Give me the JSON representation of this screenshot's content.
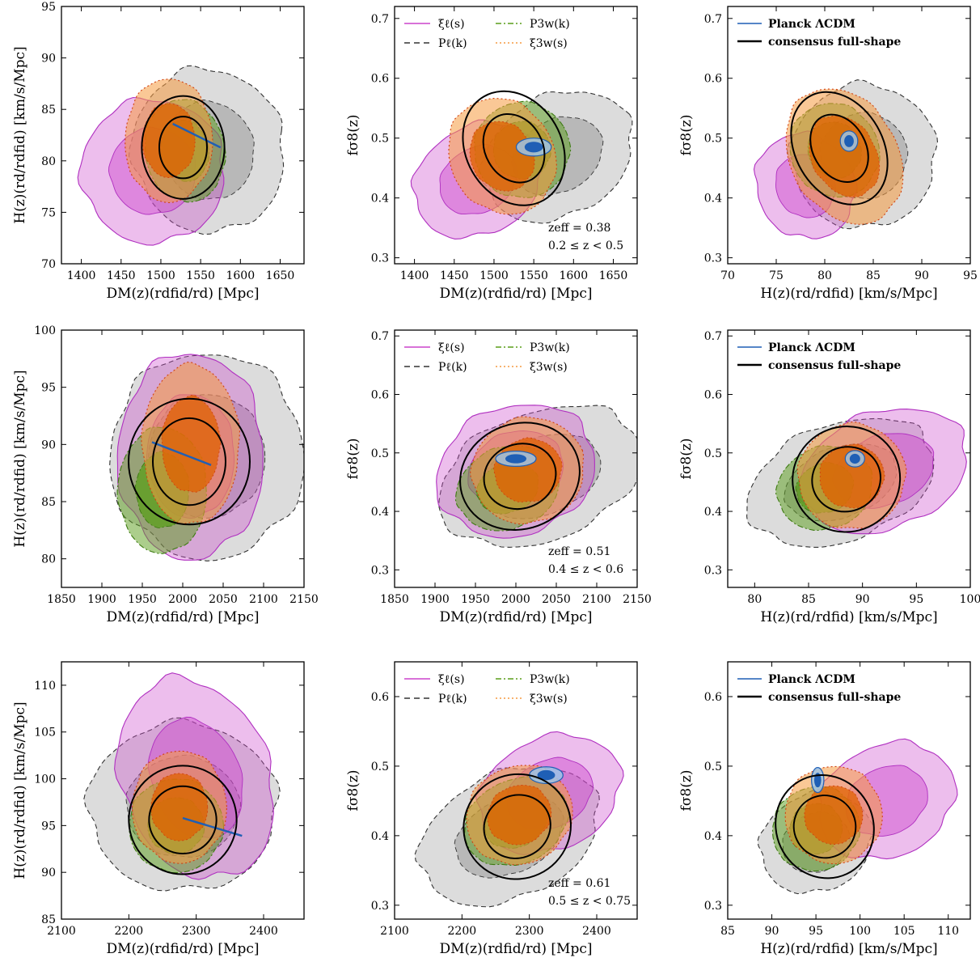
{
  "colors": {
    "xi_ell": "#cc44cc",
    "P_ell": "#808080",
    "P_3w": "#5a9e1a",
    "xi_3w": "#f59a40",
    "planck": "#1f5fb5",
    "consensus": "#000000"
  },
  "legends": {
    "methods": [
      {
        "name": "ξℓ(s)",
        "style": "solid",
        "color": "xi_ell"
      },
      {
        "name": "Pℓ(k)",
        "style": "dashed",
        "color": "P_ell"
      },
      {
        "name": "P3w(k)",
        "style": "dashdot",
        "color": "P_3w"
      },
      {
        "name": "ξ3w(s)",
        "style": "dotted",
        "color": "xi_3w"
      }
    ],
    "reference": [
      {
        "name": "Planck ΛCDM",
        "style": "solid",
        "color": "planck"
      },
      {
        "name": "consensus full-shape",
        "style": "solid-thick",
        "color": "consensus"
      }
    ]
  },
  "axis_titles": {
    "DM": "DM(z)(rdfid/rd) [Mpc]",
    "H_left": "H(z)(rd/rdfid) [km/s/Mpc]",
    "H_bottom": "H(z)(rd/rdfid) [km/s/Mpc]",
    "fs8": "fσ8(z)"
  },
  "chart_data": [
    {
      "type": "contour",
      "panel": "row1-col1",
      "xlim": [
        1375,
        1680
      ],
      "ylim": [
        70,
        95
      ],
      "xticks": [
        1400,
        1450,
        1500,
        1550,
        1600,
        1650
      ],
      "yticks": [
        70,
        75,
        80,
        85,
        90,
        95
      ],
      "xlabel": "DM",
      "ylabel": "H_left",
      "contours": [
        {
          "method": "P_ell",
          "cx": 1560,
          "cy": 81,
          "rx": 95,
          "ry": 8,
          "angle": 15
        },
        {
          "method": "xi_ell",
          "cx": 1490,
          "cy": 79,
          "rx": 90,
          "ry": 7,
          "angle": 30
        },
        {
          "method": "P_3w",
          "cx": 1530,
          "cy": 81,
          "rx": 50,
          "ry": 5,
          "angle": 10
        },
        {
          "method": "xi_3w",
          "cx": 1510,
          "cy": 82,
          "rx": 55,
          "ry": 6,
          "angle": 0
        }
      ],
      "consensus": {
        "cx": 1528,
        "cy": 81.3,
        "rx_inner": 30,
        "ry_inner": 3.0,
        "rx_outer": 52,
        "ry_outer": 5.0
      },
      "planck_line": {
        "x": [
          1515,
          1575
        ],
        "y": [
          83.6,
          81.3
        ]
      }
    },
    {
      "type": "contour",
      "panel": "row1-col2",
      "xlim": [
        1375,
        1680
      ],
      "ylim": [
        0.29,
        0.72
      ],
      "xticks": [
        1400,
        1450,
        1500,
        1550,
        1600,
        1650
      ],
      "yticks": [
        0.3,
        0.4,
        0.5,
        0.6,
        0.7
      ],
      "xlabel": "DM",
      "ylabel": "fs8",
      "contours": [
        {
          "method": "P_ell",
          "cx": 1580,
          "cy": 0.47,
          "rx": 100,
          "ry": 0.1,
          "angle": 30
        },
        {
          "method": "xi_ell",
          "cx": 1480,
          "cy": 0.43,
          "rx": 85,
          "ry": 0.09,
          "angle": 30
        },
        {
          "method": "P_3w",
          "cx": 1535,
          "cy": 0.48,
          "rx": 60,
          "ry": 0.08,
          "angle": 30
        },
        {
          "method": "xi_3w",
          "cx": 1510,
          "cy": 0.47,
          "rx": 65,
          "ry": 0.1,
          "angle": 30
        }
      ],
      "consensus": {
        "cx": 1525,
        "cy": 0.483,
        "rx_inner": 36,
        "ry_inner": 0.06,
        "rx_outer": 60,
        "ry_outer": 0.1
      },
      "planck_blob": {
        "cx": 1550,
        "cy": 0.485,
        "rx": 22,
        "ry": 0.015
      },
      "annotation": [
        "zeff = 0.38",
        "0.2 ≤ z < 0.5"
      ],
      "legend": "methods"
    },
    {
      "type": "contour",
      "panel": "row1-col3",
      "xlim": [
        70,
        95
      ],
      "ylim": [
        0.29,
        0.72
      ],
      "xticks": [
        70,
        75,
        80,
        85,
        90,
        95
      ],
      "yticks": [
        0.3,
        0.4,
        0.5,
        0.6,
        0.7
      ],
      "xlabel": "H_bottom",
      "ylabel": "fs8",
      "contours": [
        {
          "method": "P_ell",
          "cx": 84,
          "cy": 0.47,
          "rx": 7.5,
          "ry": 0.12,
          "angle": 30
        },
        {
          "method": "xi_ell",
          "cx": 78,
          "cy": 0.42,
          "rx": 5,
          "ry": 0.09,
          "angle": 30
        },
        {
          "method": "P_3w",
          "cx": 81,
          "cy": 0.48,
          "rx": 4.5,
          "ry": 0.08,
          "angle": 30
        },
        {
          "method": "xi_3w",
          "cx": 82,
          "cy": 0.47,
          "rx": 5.5,
          "ry": 0.12,
          "angle": 30
        }
      ],
      "consensus": {
        "cx": 81.5,
        "cy": 0.483,
        "rx_inner": 2.7,
        "ry_inner": 0.06,
        "rx_outer": 4.5,
        "ry_outer": 0.1
      },
      "planck_blob": {
        "cx": 82.5,
        "cy": 0.495,
        "rx": 0.9,
        "ry": 0.017
      },
      "legend": "reference"
    },
    {
      "type": "contour",
      "panel": "row2-col1",
      "xlim": [
        1850,
        2150
      ],
      "ylim": [
        77.5,
        100
      ],
      "xticks": [
        1850,
        1900,
        1950,
        2000,
        2050,
        2100,
        2150
      ],
      "yticks": [
        80,
        85,
        90,
        95,
        100
      ],
      "xlabel": "DM",
      "ylabel": "H_left",
      "contours": [
        {
          "method": "P_ell",
          "cx": 2030,
          "cy": 89,
          "rx": 120,
          "ry": 9,
          "angle": 0
        },
        {
          "method": "xi_ell",
          "cx": 2010,
          "cy": 89,
          "rx": 90,
          "ry": 9,
          "angle": 0
        },
        {
          "method": "P_3w",
          "cx": 1975,
          "cy": 86,
          "rx": 55,
          "ry": 5.5,
          "angle": 0
        },
        {
          "method": "xi_3w",
          "cx": 2010,
          "cy": 90,
          "rx": 60,
          "ry": 7,
          "angle": 0
        }
      ],
      "consensus": {
        "cx": 2008,
        "cy": 88.5,
        "rx_inner": 45,
        "ry_inner": 3.8,
        "rx_outer": 75,
        "ry_outer": 5.5
      },
      "planck_line": {
        "x": [
          1962,
          2035
        ],
        "y": [
          90.2,
          88.2
        ]
      }
    },
    {
      "type": "contour",
      "panel": "row2-col2",
      "xlim": [
        1850,
        2150
      ],
      "ylim": [
        0.27,
        0.71
      ],
      "xticks": [
        1850,
        1900,
        1950,
        2000,
        2050,
        2100,
        2150
      ],
      "yticks": [
        0.3,
        0.4,
        0.5,
        0.6,
        0.7
      ],
      "xlabel": "DM",
      "ylabel": "fs8",
      "contours": [
        {
          "method": "P_ell",
          "cx": 2030,
          "cy": 0.46,
          "rx": 130,
          "ry": 0.11,
          "angle": 20
        },
        {
          "method": "xi_ell",
          "cx": 2000,
          "cy": 0.47,
          "rx": 100,
          "ry": 0.11,
          "angle": 20
        },
        {
          "method": "P_3w",
          "cx": 1990,
          "cy": 0.44,
          "rx": 65,
          "ry": 0.07,
          "angle": 20
        },
        {
          "method": "xi_3w",
          "cx": 2015,
          "cy": 0.47,
          "rx": 70,
          "ry": 0.09,
          "angle": 20
        }
      ],
      "consensus": {
        "cx": 2005,
        "cy": 0.46,
        "rx_inner": 45,
        "ry_inner": 0.055,
        "rx_outer": 75,
        "ry_outer": 0.09
      },
      "planck_blob": {
        "cx": 2000,
        "cy": 0.49,
        "rx": 25,
        "ry": 0.013
      },
      "annotation": [
        "zeff = 0.51",
        "0.4 ≤ z < 0.6"
      ],
      "legend": "methods"
    },
    {
      "type": "contour",
      "panel": "row2-col3",
      "xlim": [
        77.5,
        100
      ],
      "ylim": [
        0.27,
        0.71
      ],
      "xticks": [
        80,
        85,
        90,
        95,
        100
      ],
      "yticks": [
        0.3,
        0.4,
        0.5,
        0.6,
        0.7
      ],
      "xlabel": "H_bottom",
      "ylabel": "fs8",
      "contours": [
        {
          "method": "P_ell",
          "cx": 88,
          "cy": 0.45,
          "rx": 9,
          "ry": 0.1,
          "angle": 20
        },
        {
          "method": "xi_ell",
          "cx": 92,
          "cy": 0.47,
          "rx": 8,
          "ry": 0.1,
          "angle": 20
        },
        {
          "method": "P_3w",
          "cx": 86.5,
          "cy": 0.44,
          "rx": 4.5,
          "ry": 0.07,
          "angle": 20
        },
        {
          "method": "xi_3w",
          "cx": 89,
          "cy": 0.46,
          "rx": 5,
          "ry": 0.09,
          "angle": 20
        }
      ],
      "consensus": {
        "cx": 88.5,
        "cy": 0.455,
        "rx_inner": 3.2,
        "ry_inner": 0.055,
        "rx_outer": 5.0,
        "ry_outer": 0.09
      },
      "planck_blob": {
        "cx": 89.3,
        "cy": 0.49,
        "rx": 0.9,
        "ry": 0.014
      },
      "legend": "reference"
    },
    {
      "type": "contour",
      "panel": "row3-col1",
      "xlim": [
        2100,
        2460
      ],
      "ylim": [
        85,
        112.5
      ],
      "xticks": [
        2100,
        2200,
        2300,
        2400
      ],
      "yticks": [
        85,
        90,
        95,
        100,
        105,
        110
      ],
      "xlabel": "DM",
      "ylabel": "H_left",
      "contours": [
        {
          "method": "P_ell",
          "cx": 2280,
          "cy": 97,
          "rx": 140,
          "ry": 9,
          "angle": 0
        },
        {
          "method": "xi_ell",
          "cx": 2300,
          "cy": 100,
          "rx": 110,
          "ry": 11,
          "angle": 20
        },
        {
          "method": "P_3w",
          "cx": 2270,
          "cy": 95,
          "rx": 70,
          "ry": 5,
          "angle": 0
        },
        {
          "method": "xi_3w",
          "cx": 2275,
          "cy": 97,
          "rx": 70,
          "ry": 6,
          "angle": 0
        }
      ],
      "consensus": {
        "cx": 2280,
        "cy": 95.6,
        "rx_inner": 50,
        "ry_inner": 3.6,
        "rx_outer": 80,
        "ry_outer": 5.8
      },
      "planck_line": {
        "x": [
          2280,
          2368
        ],
        "y": [
          95.8,
          93.9
        ]
      }
    },
    {
      "type": "contour",
      "panel": "row3-col2",
      "xlim": [
        2100,
        2460
      ],
      "ylim": [
        0.28,
        0.65
      ],
      "xticks": [
        2100,
        2200,
        2300,
        2400
      ],
      "yticks": [
        0.3,
        0.4,
        0.5,
        0.6
      ],
      "xlabel": "DM",
      "ylabel": "fs8",
      "contours": [
        {
          "method": "P_ell",
          "cx": 2270,
          "cy": 0.4,
          "rx": 140,
          "ry": 0.09,
          "angle": 25
        },
        {
          "method": "xi_ell",
          "cx": 2330,
          "cy": 0.46,
          "rx": 110,
          "ry": 0.08,
          "angle": 25
        },
        {
          "method": "P_3w",
          "cx": 2280,
          "cy": 0.42,
          "rx": 80,
          "ry": 0.06,
          "angle": 25
        },
        {
          "method": "xi_3w",
          "cx": 2285,
          "cy": 0.43,
          "rx": 80,
          "ry": 0.07,
          "angle": 25
        }
      ],
      "consensus": {
        "cx": 2282,
        "cy": 0.413,
        "rx_inner": 50,
        "ry_inner": 0.045,
        "rx_outer": 80,
        "ry_outer": 0.075
      },
      "planck_blob": {
        "cx": 2325,
        "cy": 0.487,
        "rx": 25,
        "ry": 0.012
      },
      "annotation": [
        "zeff = 0.61",
        "0.5 ≤ z < 0.75"
      ],
      "legend": "methods"
    },
    {
      "type": "contour",
      "panel": "row3-col3",
      "xlim": [
        85,
        112.5
      ],
      "ylim": [
        0.28,
        0.65
      ],
      "xticks": [
        85,
        90,
        95,
        100,
        105,
        110
      ],
      "yticks": [
        0.3,
        0.4,
        0.5,
        0.6
      ],
      "xlabel": "H_bottom",
      "ylabel": "fs8",
      "contours": [
        {
          "method": "P_ell",
          "cx": 95,
          "cy": 0.39,
          "rx": 6.5,
          "ry": 0.07,
          "angle": 25
        },
        {
          "method": "xi_ell",
          "cx": 103,
          "cy": 0.45,
          "rx": 8,
          "ry": 0.08,
          "angle": 25
        },
        {
          "method": "P_3w",
          "cx": 95,
          "cy": 0.41,
          "rx": 5,
          "ry": 0.06,
          "angle": 25
        },
        {
          "method": "xi_3w",
          "cx": 97,
          "cy": 0.43,
          "rx": 5.5,
          "ry": 0.07,
          "angle": 25
        }
      ],
      "consensus": {
        "cx": 96,
        "cy": 0.413,
        "rx_inner": 3.5,
        "ry_inner": 0.045,
        "rx_outer": 5.5,
        "ry_outer": 0.075
      },
      "planck_blob": {
        "cx": 95.2,
        "cy": 0.48,
        "rx": 0.7,
        "ry": 0.018
      },
      "legend": "reference"
    }
  ]
}
